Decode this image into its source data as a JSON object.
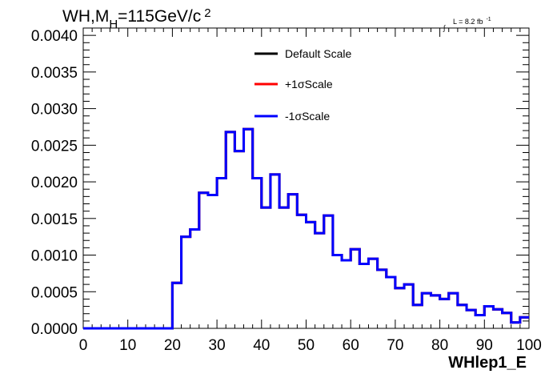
{
  "title": {
    "pre": "WH,M",
    "sub": "H",
    "post": "=115GeV/c",
    "sup": "2"
  },
  "lumi": {
    "integral": "∫",
    "text": "L = 8.2 fb",
    "sup": "-1"
  },
  "chart_data": {
    "type": "line",
    "style": "step-histogram",
    "xlabel": "WHlep1_E",
    "ylabel": "",
    "xlim": [
      0,
      100
    ],
    "ylim": [
      0,
      0.0041
    ],
    "xticks": [
      0,
      10,
      20,
      30,
      40,
      50,
      60,
      70,
      80,
      90,
      100
    ],
    "yticks": [
      0.0,
      0.0005,
      0.001,
      0.0015,
      0.002,
      0.0025,
      0.003,
      0.0035,
      0.004
    ],
    "ytick_labels": [
      "0.0000",
      "0.0005",
      "0.0010",
      "0.0015",
      "0.0020",
      "0.0025",
      "0.0030",
      "0.0035",
      "0.0040"
    ],
    "grid": false,
    "legend_position": "top-center",
    "bin_edges": [
      0,
      2,
      4,
      6,
      8,
      10,
      12,
      14,
      16,
      18,
      20,
      22,
      24,
      26,
      28,
      30,
      32,
      34,
      36,
      38,
      40,
      42,
      44,
      46,
      48,
      50,
      52,
      54,
      56,
      58,
      60,
      62,
      64,
      66,
      68,
      70,
      72,
      74,
      76,
      78,
      80,
      82,
      84,
      86,
      88,
      90,
      92,
      94,
      96,
      98,
      100
    ],
    "series": [
      {
        "name": "Default Scale",
        "color": "#000000",
        "values": [
          0,
          0,
          0,
          0,
          0,
          0,
          0,
          0,
          0,
          0,
          0.00062,
          0.00125,
          0.00135,
          0.00185,
          0.00182,
          0.00205,
          0.00268,
          0.00242,
          0.00272,
          0.00205,
          0.00165,
          0.0021,
          0.00165,
          0.00183,
          0.00155,
          0.00145,
          0.0013,
          0.00154,
          0.001,
          0.00093,
          0.00108,
          0.00088,
          0.00095,
          0.0008,
          0.0007,
          0.00055,
          0.0006,
          0.00032,
          0.00048,
          0.00045,
          0.0004,
          0.00048,
          0.00032,
          0.00025,
          0.00018,
          0.0003,
          0.00026,
          0.00021,
          8e-05,
          0.00015
        ]
      },
      {
        "name": "+1σScale",
        "color": "#ff0000",
        "values": [
          0,
          0,
          0,
          0,
          0,
          0,
          0,
          0,
          0,
          0,
          0.00062,
          0.00125,
          0.00135,
          0.00185,
          0.00182,
          0.00205,
          0.00268,
          0.00242,
          0.00272,
          0.00205,
          0.00165,
          0.0021,
          0.00165,
          0.00183,
          0.00155,
          0.00145,
          0.0013,
          0.00154,
          0.001,
          0.00093,
          0.00108,
          0.00088,
          0.00095,
          0.0008,
          0.0007,
          0.00055,
          0.0006,
          0.00032,
          0.00048,
          0.00045,
          0.0004,
          0.00048,
          0.00032,
          0.00025,
          0.00018,
          0.0003,
          0.00026,
          0.00021,
          8e-05,
          0.00015
        ]
      },
      {
        "name": "-1σScale",
        "color": "#0000ff",
        "values": [
          0,
          0,
          0,
          0,
          0,
          0,
          0,
          0,
          0,
          0,
          0.00062,
          0.00125,
          0.00135,
          0.00185,
          0.00182,
          0.00205,
          0.00268,
          0.00242,
          0.00272,
          0.00205,
          0.00165,
          0.0021,
          0.00165,
          0.00183,
          0.00155,
          0.00145,
          0.0013,
          0.00154,
          0.001,
          0.00093,
          0.00108,
          0.00088,
          0.00095,
          0.0008,
          0.0007,
          0.00055,
          0.0006,
          0.00032,
          0.00048,
          0.00045,
          0.0004,
          0.00048,
          0.00032,
          0.00025,
          0.00018,
          0.0003,
          0.00026,
          0.00021,
          8e-05,
          0.00015
        ]
      }
    ]
  }
}
